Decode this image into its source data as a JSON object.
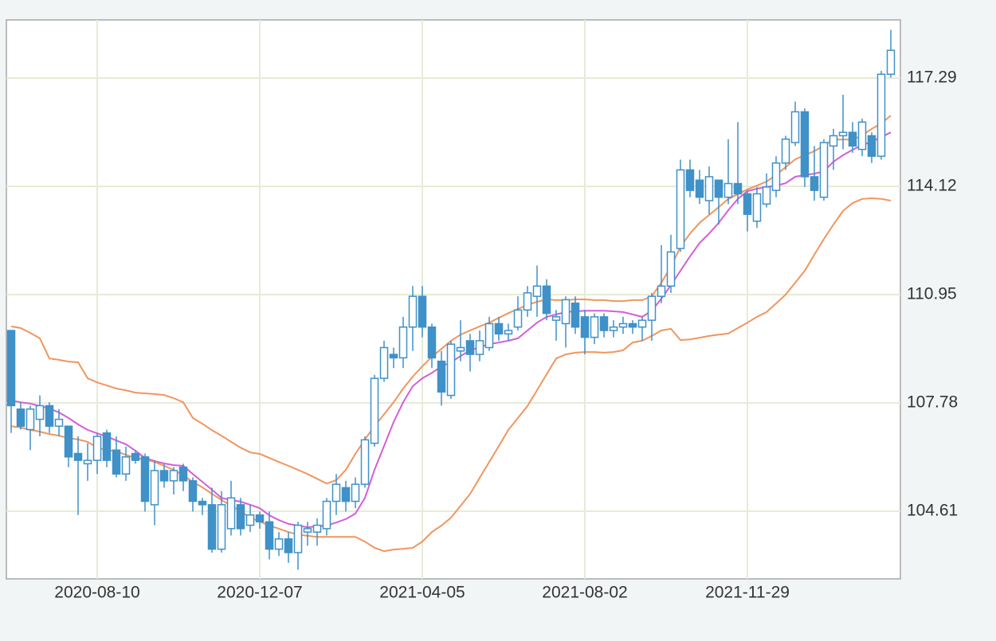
{
  "chart_data": {
    "type": "candlestick",
    "categories": [
      null,
      null,
      null,
      null,
      null,
      null,
      null,
      null,
      null,
      "2020-08-10",
      null,
      null,
      null,
      null,
      null,
      null,
      null,
      null,
      null,
      null,
      null,
      null,
      null,
      null,
      null,
      null,
      "2020-12-07",
      null,
      null,
      null,
      null,
      null,
      null,
      null,
      null,
      null,
      null,
      null,
      null,
      null,
      null,
      null,
      null,
      "2021-04-05",
      null,
      null,
      null,
      null,
      null,
      null,
      null,
      null,
      null,
      null,
      null,
      null,
      null,
      null,
      null,
      null,
      "2021-08-02",
      null,
      null,
      null,
      null,
      null,
      null,
      null,
      null,
      null,
      null,
      null,
      null,
      null,
      null,
      null,
      null,
      "2021-11-29",
      null,
      null,
      null,
      null,
      null,
      null,
      null,
      null,
      null,
      null,
      null,
      null,
      null,
      null,
      null
    ],
    "open": [
      109.9,
      107.6,
      107.0,
      107.3,
      107.7,
      107.1,
      107.1,
      106.3,
      106.0,
      106.1,
      106.9,
      106.4,
      105.7,
      106.3,
      106.2,
      104.8,
      105.8,
      105.5,
      105.9,
      105.5,
      104.9,
      104.8,
      103.5,
      104.1,
      104.8,
      104.2,
      104.5,
      104.3,
      103.5,
      103.8,
      103.4,
      104.0,
      104.0,
      104.1,
      104.9,
      105.3,
      104.9,
      105.4,
      106.6,
      108.5,
      109.2,
      109.1,
      110.0,
      110.9,
      110.0,
      109.0,
      108.0,
      109.3,
      109.6,
      109.2,
      109.4,
      110.1,
      109.8,
      110.0,
      110.5,
      110.9,
      111.2,
      110.2,
      110.1,
      110.7,
      110.3,
      109.7,
      110.3,
      109.9,
      110.0,
      110.1,
      110.0,
      110.2,
      110.9,
      111.2,
      112.3,
      114.6,
      114.3,
      113.7,
      114.3,
      113.8,
      114.2,
      113.9,
      113.1,
      113.6,
      114.0,
      114.8,
      115.4,
      116.3,
      114.4,
      113.8,
      115.3,
      115.6,
      115.7,
      115.2,
      115.6,
      115.0,
      117.4
    ],
    "high": [
      109.9,
      107.8,
      107.7,
      108.0,
      107.8,
      107.6,
      107.1,
      106.8,
      106.6,
      106.9,
      107.0,
      106.8,
      106.5,
      106.4,
      106.3,
      106.1,
      106.0,
      105.9,
      106.0,
      105.6,
      105.0,
      105.3,
      105.2,
      105.5,
      105.0,
      104.8,
      104.6,
      104.6,
      104.0,
      104.0,
      104.3,
      104.3,
      104.4,
      105.0,
      105.7,
      105.5,
      105.6,
      106.8,
      108.6,
      109.6,
      109.4,
      110.3,
      111.2,
      111.2,
      110.1,
      109.3,
      109.6,
      110.2,
      109.8,
      109.9,
      110.3,
      110.3,
      110.1,
      110.9,
      111.2,
      111.8,
      111.4,
      110.5,
      110.9,
      110.9,
      110.5,
      110.4,
      110.4,
      110.2,
      110.3,
      110.2,
      110.3,
      111.0,
      112.4,
      112.7,
      114.9,
      114.9,
      114.6,
      114.7,
      114.3,
      115.5,
      116.0,
      114.0,
      114.1,
      114.5,
      115.0,
      115.6,
      116.6,
      116.4,
      115.3,
      115.5,
      115.8,
      116.8,
      116.0,
      116.1,
      115.7,
      117.5,
      118.7
    ],
    "low": [
      106.9,
      107.0,
      106.4,
      106.8,
      106.9,
      106.8,
      105.9,
      104.5,
      105.5,
      105.7,
      105.9,
      105.6,
      105.5,
      106.0,
      104.6,
      104.2,
      105.3,
      105.1,
      105.2,
      104.6,
      104.5,
      103.4,
      103.4,
      103.9,
      103.9,
      104.0,
      104.1,
      103.2,
      103.3,
      103.1,
      102.9,
      103.6,
      103.6,
      103.9,
      104.5,
      104.6,
      104.7,
      105.3,
      106.5,
      108.4,
      108.8,
      108.8,
      109.3,
      109.7,
      108.8,
      107.7,
      107.9,
      109.0,
      108.7,
      109.0,
      109.3,
      109.6,
      109.6,
      109.9,
      110.3,
      110.3,
      110.2,
      109.6,
      109.4,
      109.8,
      109.2,
      109.5,
      109.7,
      109.7,
      109.8,
      109.8,
      109.6,
      109.6,
      110.7,
      111.0,
      112.2,
      113.8,
      113.6,
      113.3,
      113.0,
      113.6,
      113.6,
      112.8,
      112.9,
      113.5,
      113.8,
      114.6,
      115.3,
      114.1,
      113.7,
      113.7,
      114.6,
      115.2,
      115.1,
      115.0,
      114.8,
      114.9,
      117.3
    ],
    "close": [
      107.7,
      107.1,
      107.6,
      107.7,
      107.1,
      107.3,
      106.2,
      106.1,
      106.1,
      106.8,
      106.1,
      105.7,
      106.2,
      106.1,
      104.9,
      105.8,
      105.5,
      105.8,
      105.5,
      104.9,
      104.8,
      103.5,
      104.8,
      105.0,
      104.1,
      104.5,
      104.3,
      103.5,
      103.8,
      103.4,
      104.2,
      104.1,
      104.2,
      104.9,
      105.4,
      104.9,
      105.4,
      106.7,
      108.5,
      109.4,
      109.1,
      110.0,
      110.9,
      110.0,
      109.1,
      108.1,
      109.5,
      109.4,
      109.2,
      109.6,
      110.1,
      109.8,
      109.9,
      110.5,
      111.0,
      111.2,
      110.4,
      110.3,
      110.8,
      110.0,
      109.7,
      110.3,
      109.9,
      110.0,
      110.1,
      110.0,
      110.2,
      110.9,
      111.2,
      112.2,
      114.6,
      114.0,
      113.8,
      114.4,
      113.8,
      114.2,
      113.9,
      113.3,
      113.9,
      114.1,
      114.8,
      115.5,
      116.3,
      114.4,
      114.0,
      115.4,
      115.6,
      115.7,
      115.3,
      116.0,
      115.0,
      117.4,
      118.1
    ],
    "color": "#3f91c8",
    "series": [
      {
        "color": "#f0965e",
        "values": [
          110.02,
          109.97,
          109.83,
          109.67,
          109.08,
          109.04,
          108.99,
          108.97,
          108.5,
          108.38,
          108.29,
          108.2,
          108.15,
          108.08,
          108.06,
          108.04,
          108.01,
          107.92,
          107.8,
          107.34,
          107.17,
          106.98,
          106.82,
          106.64,
          106.47,
          106.33,
          106.29,
          106.17,
          106.05,
          105.94,
          105.82,
          105.7,
          105.56,
          105.42,
          105.52,
          105.82,
          106.29,
          106.71,
          107.1,
          107.45,
          107.8,
          108.2,
          108.55,
          108.85,
          109.13,
          109.36,
          109.6,
          109.78,
          109.9,
          110.02,
          110.13,
          110.27,
          110.41,
          110.53,
          110.65,
          110.74,
          110.81,
          110.79,
          110.79,
          110.81,
          110.81,
          110.79,
          110.79,
          110.76,
          110.76,
          110.79,
          110.79,
          110.9,
          111.3,
          111.76,
          112.35,
          112.74,
          113.05,
          113.28,
          113.51,
          113.75,
          113.89,
          114.03,
          114.14,
          114.26,
          114.45,
          114.68,
          114.91,
          115.03,
          115.15,
          115.31,
          115.49,
          115.49,
          115.49,
          115.61,
          115.8,
          115.96,
          116.19
        ]
      },
      {
        "color": "#d35fd8",
        "values": [
          107.85,
          107.8,
          107.76,
          107.69,
          107.62,
          107.5,
          107.34,
          107.15,
          106.99,
          106.89,
          106.8,
          106.68,
          106.57,
          106.38,
          106.17,
          106.08,
          106.01,
          105.96,
          105.94,
          105.7,
          105.47,
          105.24,
          105.0,
          104.94,
          104.89,
          104.8,
          104.7,
          104.49,
          104.35,
          104.24,
          104.19,
          104.14,
          104.17,
          104.19,
          104.28,
          104.38,
          104.54,
          105.0,
          105.82,
          106.52,
          107.22,
          107.8,
          108.27,
          108.5,
          108.66,
          108.85,
          108.97,
          109.15,
          109.32,
          109.41,
          109.5,
          109.55,
          109.6,
          109.67,
          109.9,
          110.13,
          110.3,
          110.37,
          110.44,
          110.46,
          110.48,
          110.48,
          110.48,
          110.46,
          110.44,
          110.37,
          110.3,
          110.48,
          110.83,
          111.23,
          111.65,
          112.07,
          112.46,
          112.74,
          113.05,
          113.42,
          113.75,
          113.98,
          114.05,
          114.1,
          114.14,
          114.21,
          114.4,
          114.45,
          114.49,
          114.56,
          114.84,
          115.03,
          115.19,
          115.33,
          115.42,
          115.56,
          115.7
        ]
      },
      {
        "color": "#f0965e",
        "values": [
          107.1,
          107.06,
          106.99,
          106.94,
          106.87,
          106.82,
          106.75,
          106.71,
          106.64,
          106.47,
          106.4,
          106.36,
          106.26,
          106.17,
          106.12,
          106.05,
          105.94,
          105.82,
          105.66,
          105.47,
          105.31,
          105.12,
          104.94,
          104.77,
          104.61,
          104.42,
          104.31,
          104.19,
          104.1,
          104.0,
          103.93,
          103.89,
          103.86,
          103.86,
          103.86,
          103.86,
          103.86,
          103.72,
          103.54,
          103.44,
          103.49,
          103.51,
          103.54,
          103.72,
          104.0,
          104.19,
          104.42,
          104.77,
          105.12,
          105.59,
          106.05,
          106.52,
          106.99,
          107.34,
          107.69,
          108.15,
          108.62,
          109.08,
          109.2,
          109.25,
          109.27,
          109.27,
          109.25,
          109.27,
          109.32,
          109.55,
          109.6,
          109.74,
          109.9,
          109.95,
          109.62,
          109.64,
          109.69,
          109.74,
          109.78,
          109.81,
          109.97,
          110.13,
          110.3,
          110.44,
          110.69,
          110.95,
          111.3,
          111.65,
          112.12,
          112.58,
          113.0,
          113.4,
          113.63,
          113.75,
          113.77,
          113.75,
          113.7
        ]
      }
    ],
    "ylim": [
      102.63,
      118.99
    ],
    "yticks": [
      104.61,
      107.78,
      110.95,
      114.12,
      117.29
    ],
    "grid": true
  }
}
